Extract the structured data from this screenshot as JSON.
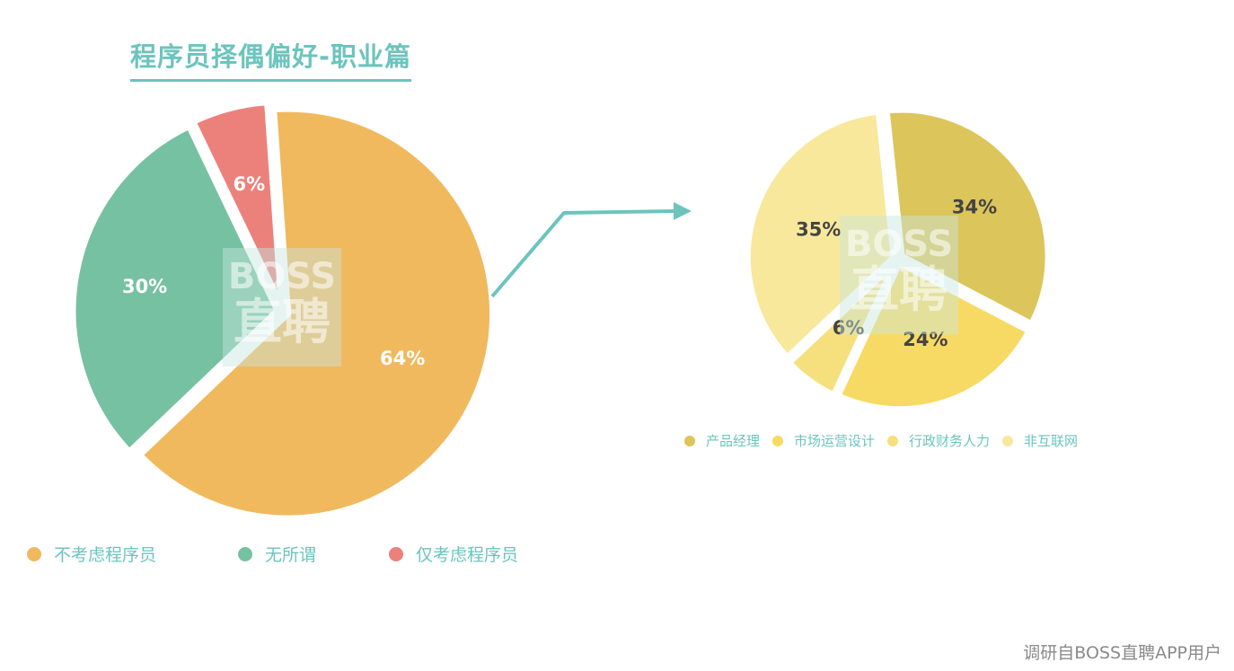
{
  "title": "程序员择偶偏好-职业篇",
  "source": "调研自BOSS直聘APP用户",
  "watermark": {
    "line1": "BOSS",
    "line2": "直聘"
  },
  "accent_color": "#6cc4bd",
  "chart_data": [
    {
      "type": "pie",
      "title": "程序员择偶偏好-职业篇",
      "legend_position": "bottom",
      "categories": [
        "不考虑程序员",
        "无所谓",
        "仅考虑程序员"
      ],
      "values": [
        64,
        30,
        6
      ],
      "labels": [
        "64%",
        "30%",
        "6%"
      ],
      "colors": [
        "#f0b95e",
        "#76c1a1",
        "#ec817c"
      ],
      "label_color": "#ffffff"
    },
    {
      "type": "pie",
      "legend_position": "bottom",
      "categories": [
        "产品经理",
        "市场运营设计",
        "行政财务人力",
        "非互联网"
      ],
      "values": [
        34,
        24,
        6,
        35
      ],
      "labels": [
        "34%",
        "24%",
        "6%",
        "35%"
      ],
      "colors": [
        "#dcc55a",
        "#f7da63",
        "#f6e07e",
        "#f8e89c"
      ],
      "label_color": "#444444"
    }
  ]
}
